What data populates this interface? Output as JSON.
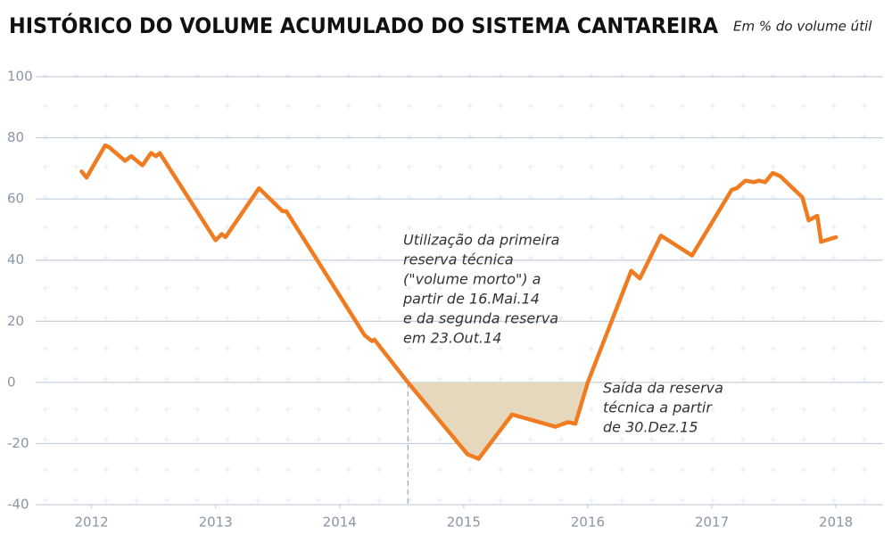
{
  "chart_data": {
    "type": "line",
    "title": "HISTÓRICO DO VOLUME ACUMULADO DO SISTEMA CANTAREIRA",
    "subtitle": "Em % do volume útil",
    "x": [
      2011.92,
      2011.96,
      2012.11,
      2012.14,
      2012.27,
      2012.32,
      2012.41,
      2012.48,
      2012.52,
      2012.55,
      2013.0,
      2013.05,
      2013.08,
      2013.35,
      2013.54,
      2013.57,
      2014.2,
      2014.26,
      2014.28,
      2014.55,
      2015.03,
      2015.12,
      2015.39,
      2015.74,
      2015.84,
      2015.9,
      2016.0,
      2016.35,
      2016.42,
      2016.59,
      2016.84,
      2017.16,
      2017.2,
      2017.27,
      2017.34,
      2017.38,
      2017.43,
      2017.49,
      2017.55,
      2017.73,
      2017.78,
      2017.85,
      2017.88,
      2018.0
    ],
    "series": [
      {
        "name": "Volume acumulado",
        "color": "#f07c21",
        "values": [
          69,
          67,
          77.5,
          77,
          72.5,
          74,
          71,
          75,
          74,
          75,
          46.5,
          48.5,
          47.5,
          63.5,
          56,
          56,
          15.5,
          13.5,
          14,
          0,
          -23.5,
          -25,
          -10.5,
          -14.5,
          -13,
          -13.5,
          0,
          36.5,
          34,
          48,
          41.5,
          63,
          63.5,
          66,
          65.5,
          66,
          65.5,
          68.5,
          67.5,
          60.5,
          53,
          54.5,
          46,
          47.5
        ]
      }
    ],
    "area_color": "#e6d8bd",
    "xlim": [
      2011.55,
      2018.38
    ],
    "xticks": [
      2012,
      2013,
      2014,
      2015,
      2016,
      2017,
      2018
    ],
    "ylim": [
      -40,
      100
    ],
    "yticks": [
      -40,
      -20,
      0,
      20,
      40,
      60,
      80,
      100
    ],
    "grid": true,
    "annotations": [
      {
        "lines": [
          "Utilização da primeira",
          "reserva técnica",
          "(\"volume morto\") a",
          "partir de  16.Mai.14",
          "e da segunda reserva",
          "em 23.Out.14"
        ]
      },
      {
        "lines": [
          "Saída da reserva",
          "técnica a partir",
          "de 30.Dez.15"
        ]
      }
    ]
  }
}
